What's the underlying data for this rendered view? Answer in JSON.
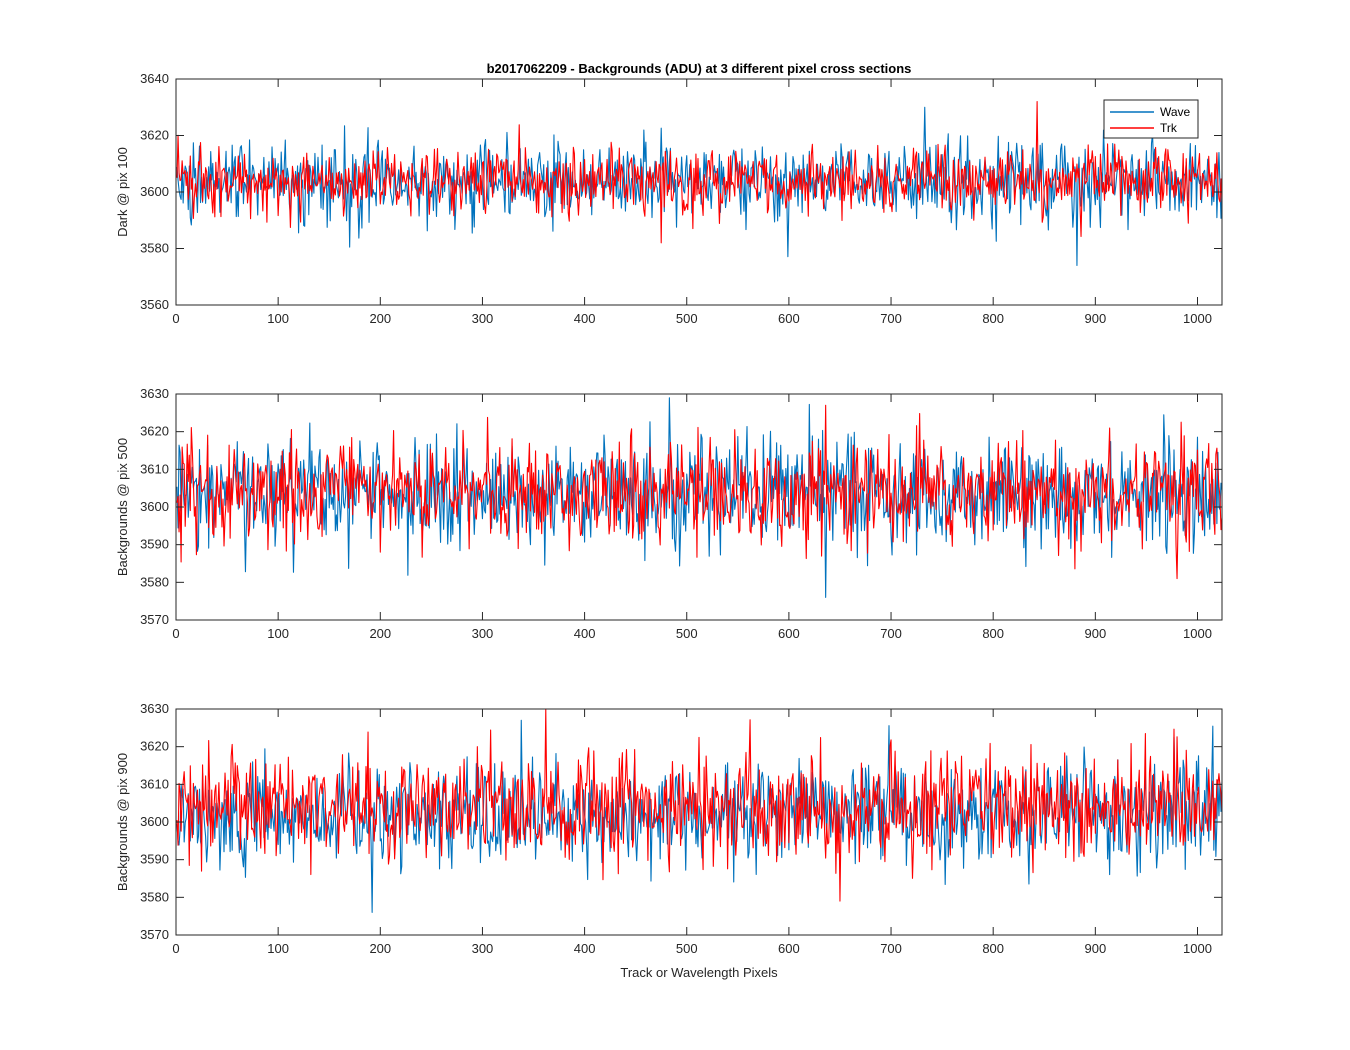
{
  "title": "b2017062209 - Backgrounds (ADU) at 3 different pixel cross sections",
  "xlabel": "Track or Wavelength Pixels",
  "legend": {
    "entries": [
      "Wave",
      "Trk"
    ],
    "placement": "top-right"
  },
  "colors": {
    "Wave": "#0072bd",
    "Trk": "#ff0000"
  },
  "chart_data": [
    {
      "type": "line",
      "title": "b2017062209 - Backgrounds (ADU) at 3 different pixel cross sections",
      "xlabel": "",
      "ylabel": "Dark @ pix 100",
      "xlim": [
        0,
        1024
      ],
      "ylim": [
        3560,
        3640
      ],
      "xticks": [
        0,
        100,
        200,
        300,
        400,
        500,
        600,
        700,
        800,
        900,
        1000
      ],
      "yticks": [
        3560,
        3580,
        3600,
        3620,
        3640
      ],
      "grid": false,
      "legend": "top-right",
      "series": [
        {
          "name": "Wave",
          "color": "#0072bd",
          "x_range": [
            1,
            1024
          ],
          "mean": 3604,
          "spread_std": 7,
          "min": 3574,
          "max": 3630,
          "x_at_min": 882,
          "x_at_max": 733
        },
        {
          "name": "Trk",
          "color": "#ff0000",
          "x_range": [
            1,
            1024
          ],
          "mean": 3604,
          "spread_std": 6,
          "min": 3582,
          "max": 3632,
          "x_at_min": 475,
          "x_at_max": 843
        }
      ]
    },
    {
      "type": "line",
      "xlabel": "",
      "ylabel": "Backgrounds @ pix 500",
      "xlim": [
        0,
        1024
      ],
      "ylim": [
        3570,
        3630
      ],
      "xticks": [
        0,
        100,
        200,
        300,
        400,
        500,
        600,
        700,
        800,
        900,
        1000
      ],
      "yticks": [
        3570,
        3580,
        3590,
        3600,
        3610,
        3620,
        3630
      ],
      "grid": false,
      "series": [
        {
          "name": "Wave",
          "color": "#0072bd",
          "x_range": [
            1,
            1024
          ],
          "mean": 3604,
          "spread_std": 7,
          "min": 3576,
          "max": 3629,
          "x_at_min": 636,
          "x_at_max": 483
        },
        {
          "name": "Trk",
          "color": "#ff0000",
          "x_range": [
            1,
            1024
          ],
          "mean": 3604,
          "spread_std": 7,
          "min": 3581,
          "max": 3627,
          "x_at_min": 980,
          "x_at_max": 636
        }
      ]
    },
    {
      "type": "line",
      "xlabel": "Track or Wavelength Pixels",
      "ylabel": "Backgrounds @ pix 900",
      "xlim": [
        0,
        1024
      ],
      "ylim": [
        3570,
        3630
      ],
      "xticks": [
        0,
        100,
        200,
        300,
        400,
        500,
        600,
        700,
        800,
        900,
        1000
      ],
      "yticks": [
        3570,
        3580,
        3590,
        3600,
        3610,
        3620,
        3630
      ],
      "grid": false,
      "series": [
        {
          "name": "Wave",
          "color": "#0072bd",
          "x_range": [
            1,
            1024
          ],
          "mean": 3602,
          "spread_std": 7,
          "min": 3576,
          "max": 3627,
          "x_at_min": 192,
          "x_at_max": 338
        },
        {
          "name": "Trk",
          "color": "#ff0000",
          "x_range": [
            1,
            1024
          ],
          "mean": 3604,
          "spread_std": 7,
          "min": 3579,
          "max": 3630,
          "x_at_min": 650,
          "x_at_max": 362
        }
      ]
    }
  ]
}
